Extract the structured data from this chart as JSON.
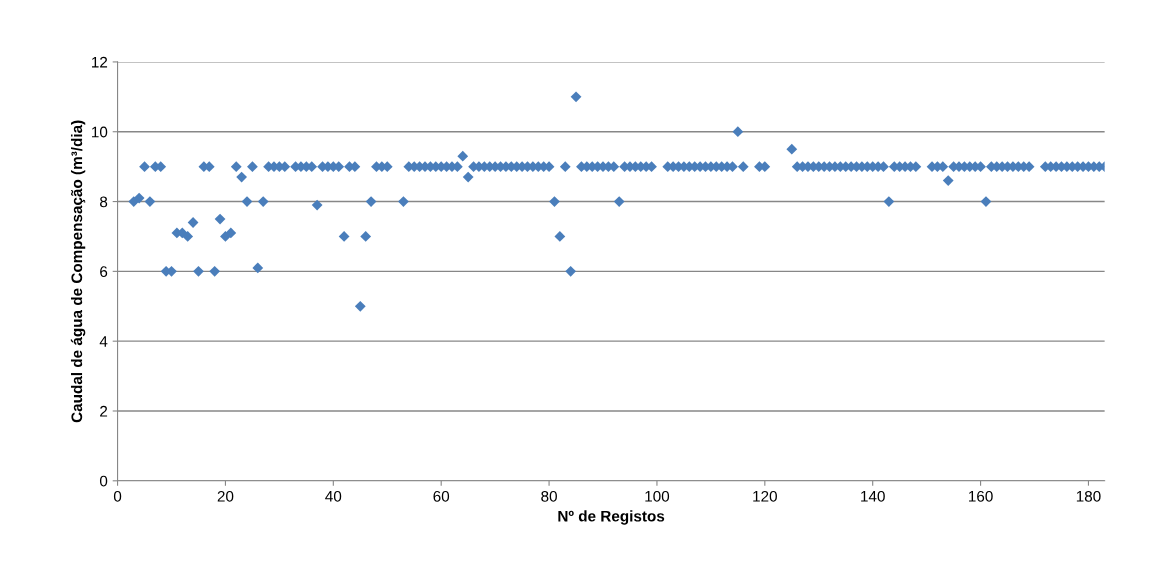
{
  "chart_data": {
    "type": "scatter",
    "xlabel": "Nº de Registos",
    "ylabel": "Caudal de água de Compensação (m³/dia)",
    "x": [
      3,
      4,
      5,
      6,
      7,
      8,
      9,
      10,
      11,
      12,
      13,
      14,
      15,
      16,
      17,
      18,
      19,
      20,
      21,
      22,
      23,
      24,
      25,
      26,
      27,
      28,
      29,
      30,
      31,
      33,
      34,
      35,
      36,
      37,
      38,
      39,
      40,
      41,
      42,
      43,
      44,
      45,
      46,
      47,
      48,
      49,
      50,
      53,
      54,
      55,
      56,
      57,
      58,
      59,
      60,
      61,
      62,
      63,
      64,
      65,
      66,
      67,
      68,
      69,
      70,
      71,
      72,
      73,
      74,
      75,
      76,
      77,
      78,
      79,
      80,
      81,
      82,
      83,
      84,
      85,
      86,
      87,
      88,
      89,
      90,
      91,
      92,
      93,
      94,
      95,
      96,
      97,
      98,
      99,
      102,
      103,
      104,
      105,
      106,
      107,
      108,
      109,
      110,
      111,
      112,
      113,
      114,
      115,
      116,
      119,
      120,
      125,
      126,
      127,
      128,
      129,
      130,
      131,
      132,
      133,
      134,
      135,
      136,
      137,
      138,
      139,
      140,
      141,
      142,
      143,
      144,
      145,
      146,
      147,
      148,
      151,
      152,
      153,
      154,
      155,
      156,
      157,
      158,
      159,
      160,
      161,
      162,
      163,
      164,
      165,
      166,
      167,
      168,
      169,
      172,
      173,
      174,
      175,
      176,
      177,
      178,
      179,
      180,
      181,
      182,
      183
    ],
    "series": [
      {
        "color": "#4a7ebb",
        "values": [
          8,
          8.1,
          9,
          8,
          9,
          9,
          6,
          6,
          7.1,
          7.1,
          7,
          7.4,
          6,
          9,
          9,
          6,
          7.5,
          7,
          7.1,
          9,
          8.7,
          8,
          9,
          6.1,
          8,
          9,
          9,
          9,
          9,
          9,
          9,
          9,
          9,
          7.9,
          9,
          9,
          9,
          9,
          7,
          9,
          9,
          5,
          7,
          8,
          9,
          9,
          9,
          8,
          9,
          9,
          9,
          9,
          9,
          9,
          9,
          9,
          9,
          9,
          9.3,
          8.7,
          9,
          9,
          9,
          9,
          9,
          9,
          9,
          9,
          9,
          9,
          9,
          9,
          9,
          9,
          9,
          8,
          7,
          9,
          6,
          11,
          9,
          9,
          9,
          9,
          9,
          9,
          9,
          8,
          9,
          9,
          9,
          9,
          9,
          9,
          9,
          9,
          9,
          9,
          9,
          9,
          9,
          9,
          9,
          9,
          9,
          9,
          9,
          10,
          9,
          9,
          9,
          9.5,
          9,
          9,
          9,
          9,
          9,
          9,
          9,
          9,
          9,
          9,
          9,
          9,
          9,
          9,
          9,
          9,
          9,
          8,
          9,
          9,
          9,
          9,
          9,
          9,
          9,
          9,
          8.6,
          9,
          9,
          9,
          9,
          9,
          9,
          8,
          9,
          9,
          9,
          9,
          9,
          9,
          9,
          9,
          9,
          9,
          9,
          9,
          9,
          9,
          9,
          9,
          9,
          9,
          9,
          9
        ]
      }
    ],
    "xlim": [
      0,
      183
    ],
    "xticks": [
      0,
      20,
      40,
      60,
      80,
      100,
      120,
      140,
      160,
      180
    ],
    "ylim": [
      0,
      12
    ],
    "yticks": [
      0,
      2,
      4,
      6,
      8,
      10,
      12
    ],
    "grid": "y",
    "marker": "diamond"
  }
}
